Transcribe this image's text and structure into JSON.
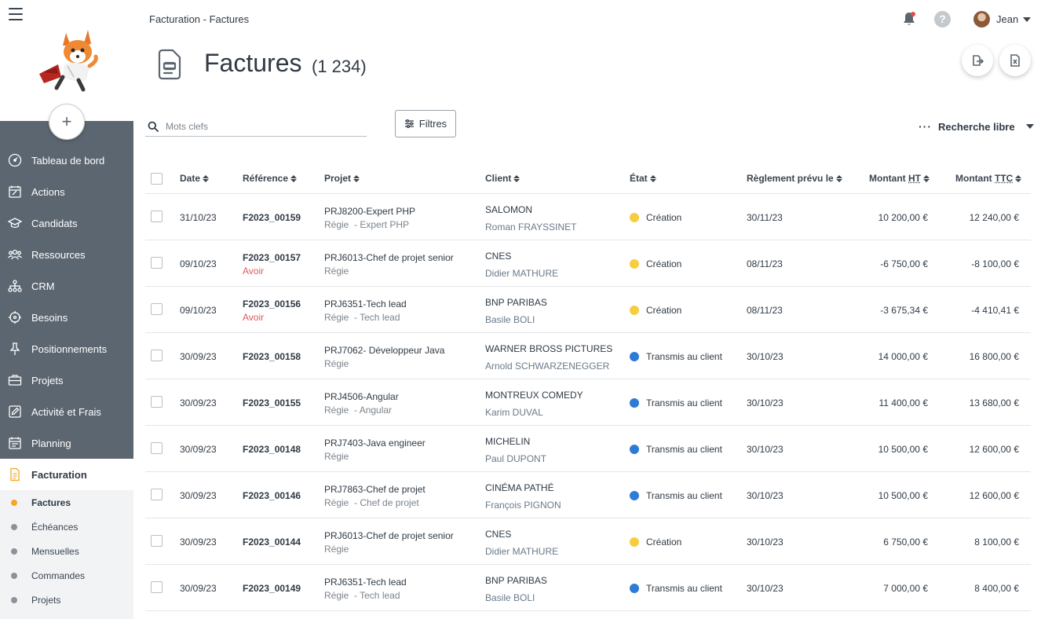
{
  "breadcrumb": "Facturation - Factures",
  "header": {
    "user_name": "Jean"
  },
  "page": {
    "title": "Factures",
    "count": "(1 234)"
  },
  "search": {
    "placeholder": "Mots clefs"
  },
  "filters_label": "Filtres",
  "free_search_label": "Recherche libre",
  "sidebar": {
    "items": [
      {
        "label": "Tableau de bord",
        "icon": "dashboard-icon"
      },
      {
        "label": "Actions",
        "icon": "calendar-edit-icon"
      },
      {
        "label": "Candidats",
        "icon": "graduation-cap-icon"
      },
      {
        "label": "Ressources",
        "icon": "people-icon"
      },
      {
        "label": "CRM",
        "icon": "org-chart-icon"
      },
      {
        "label": "Besoins",
        "icon": "target-icon"
      },
      {
        "label": "Positionnements",
        "icon": "pin-icon"
      },
      {
        "label": "Projets",
        "icon": "briefcase-icon"
      },
      {
        "label": "Activité et Frais",
        "icon": "edit-icon"
      },
      {
        "label": "Planning",
        "icon": "calendar-icon"
      },
      {
        "label": "Facturation",
        "icon": "invoice-icon"
      }
    ],
    "sub_items": [
      "Factures",
      "Échéances",
      "Mensuelles",
      "Commandes",
      "Projets"
    ]
  },
  "colors": {
    "creation": "#f5cd3f",
    "transmis": "#2d7bd6",
    "active_orange": "#f5a623"
  },
  "table": {
    "headers": {
      "date": "Date",
      "reference": "Référence",
      "projet": "Projet",
      "client": "Client",
      "etat": "État",
      "reglement": "Règlement prévu le",
      "montant_ht_prefix": "Montant",
      "montant_ht_unit": "HT",
      "montant_ttc_prefix": "Montant",
      "montant_ttc_unit": "TTC"
    },
    "rows": [
      {
        "date": "31/10/23",
        "ref": "F2023_00159",
        "avoir": "",
        "projet": "PRJ8200-Expert PHP",
        "projet_sub": "Régie  - Expert PHP",
        "client": "SALOMON",
        "contact": "Roman FRAYSSINET",
        "etat": "Création",
        "etat_type": "creation",
        "reglement": "30/11/23",
        "ht": "10 200,00 €",
        "ttc": "12 240,00 €"
      },
      {
        "date": "09/10/23",
        "ref": "F2023_00157",
        "avoir": "Avoir",
        "projet": "PRJ6013-Chef de projet senior",
        "projet_sub": "Régie",
        "client": "CNES",
        "contact": "Didier MATHURE",
        "etat": "Création",
        "etat_type": "creation",
        "reglement": "08/11/23",
        "ht": "-6 750,00 €",
        "ttc": "-8 100,00 €"
      },
      {
        "date": "09/10/23",
        "ref": "F2023_00156",
        "avoir": "Avoir",
        "projet": "PRJ6351-Tech lead",
        "projet_sub": "Régie  - Tech lead",
        "client": "BNP PARIBAS",
        "contact": "Basile BOLI",
        "etat": "Création",
        "etat_type": "creation",
        "reglement": "08/11/23",
        "ht": "-3 675,34 €",
        "ttc": "-4 410,41 €"
      },
      {
        "date": "30/09/23",
        "ref": "F2023_00158",
        "avoir": "",
        "projet": "PRJ7062- Développeur Java",
        "projet_sub": "Régie",
        "client": "WARNER BROSS PICTURES",
        "contact": "Arnold SCHWARZENEGGER",
        "etat": "Transmis au client",
        "etat_type": "transmis",
        "reglement": "30/10/23",
        "ht": "14 000,00 €",
        "ttc": "16 800,00 €"
      },
      {
        "date": "30/09/23",
        "ref": "F2023_00155",
        "avoir": "",
        "projet": "PRJ4506-Angular",
        "projet_sub": "Régie  - Angular",
        "client": "MONTREUX COMEDY",
        "contact": "Karim DUVAL",
        "etat": "Transmis au client",
        "etat_type": "transmis",
        "reglement": "30/10/23",
        "ht": "11 400,00 €",
        "ttc": "13 680,00 €"
      },
      {
        "date": "30/09/23",
        "ref": "F2023_00148",
        "avoir": "",
        "projet": "PRJ7403-Java engineer",
        "projet_sub": "Régie",
        "client": "MICHELIN",
        "contact": "Paul DUPONT",
        "etat": "Transmis au client",
        "etat_type": "transmis",
        "reglement": "30/10/23",
        "ht": "10 500,00 €",
        "ttc": "12 600,00 €"
      },
      {
        "date": "30/09/23",
        "ref": "F2023_00146",
        "avoir": "",
        "projet": "PRJ7863-Chef de projet",
        "projet_sub": "Régie  - Chef de projet",
        "client": "CINÉMA PATHÉ",
        "contact": "François PIGNON",
        "etat": "Transmis au client",
        "etat_type": "transmis",
        "reglement": "30/10/23",
        "ht": "10 500,00 €",
        "ttc": "12 600,00 €"
      },
      {
        "date": "30/09/23",
        "ref": "F2023_00144",
        "avoir": "",
        "projet": "PRJ6013-Chef de projet senior",
        "projet_sub": "Régie",
        "client": "CNES",
        "contact": "Didier MATHURE",
        "etat": "Création",
        "etat_type": "creation",
        "reglement": "30/10/23",
        "ht": "6 750,00 €",
        "ttc": "8 100,00 €"
      },
      {
        "date": "30/09/23",
        "ref": "F2023_00149",
        "avoir": "",
        "projet": "PRJ6351-Tech lead",
        "projet_sub": "Régie  - Tech lead",
        "client": "BNP PARIBAS",
        "contact": "Basile BOLI",
        "etat": "Transmis au client",
        "etat_type": "transmis",
        "reglement": "30/10/23",
        "ht": "7 000,00 €",
        "ttc": "8 400,00 €"
      }
    ]
  }
}
